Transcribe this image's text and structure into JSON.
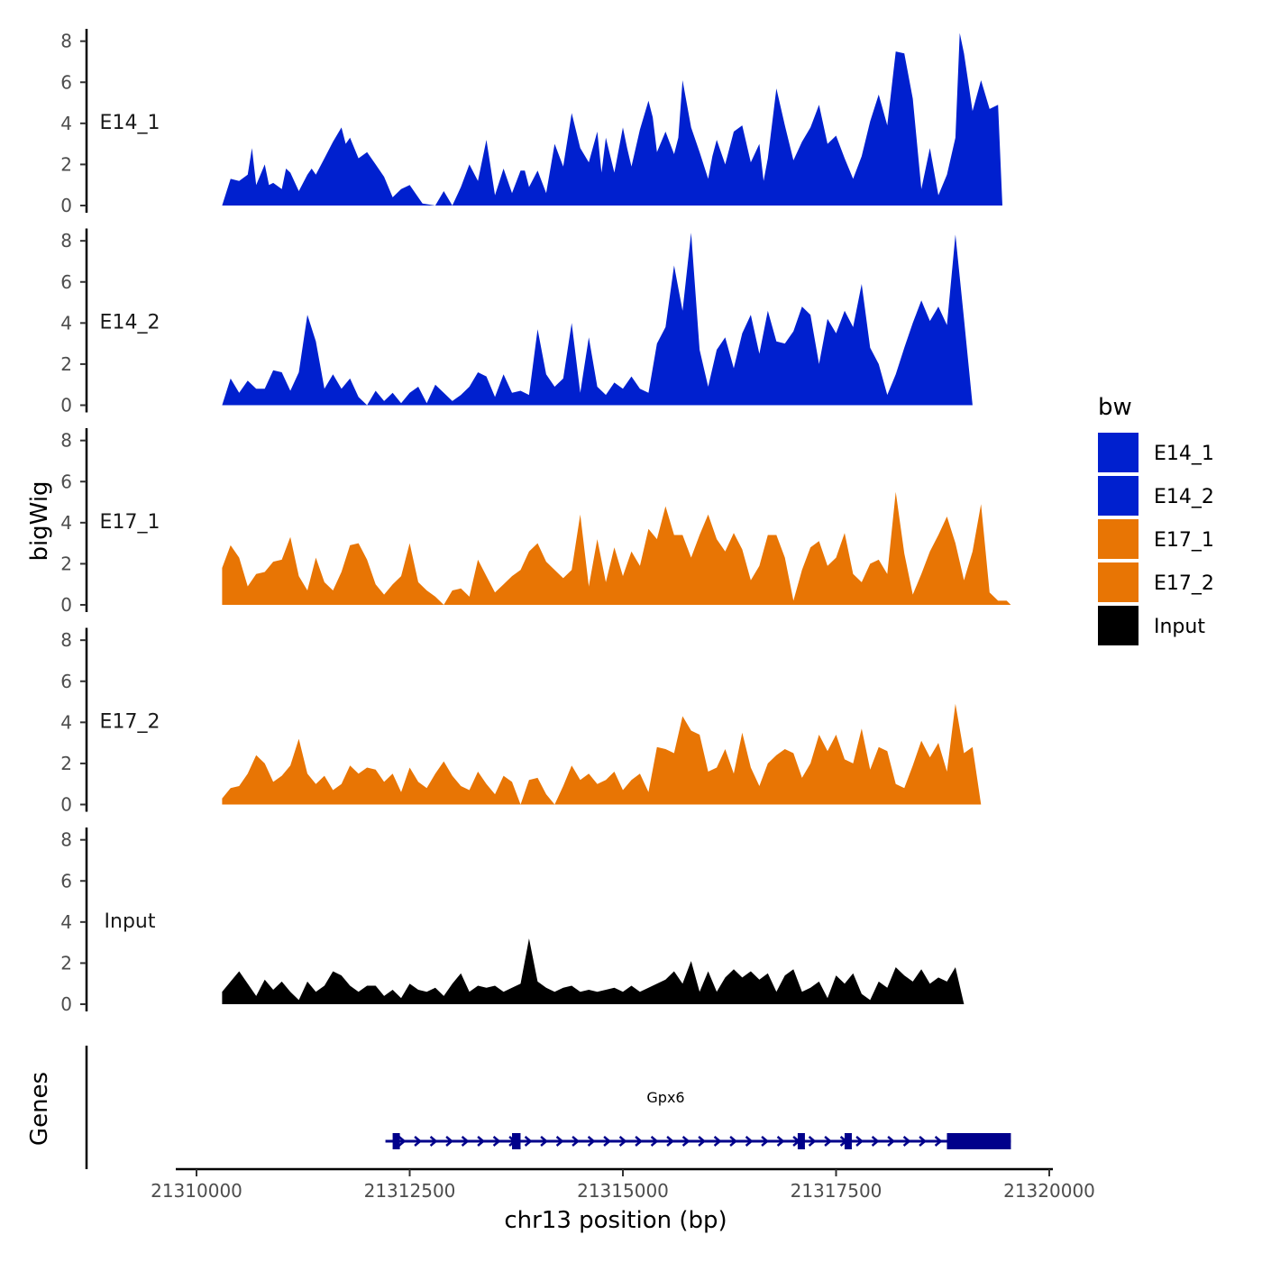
{
  "chart_data": {
    "type": "area",
    "ylabel": "bigWig",
    "genes_label": "Genes",
    "xlabel": "chr13 position (bp)",
    "xlim": [
      21309500,
      21320000
    ],
    "x_ticks": [
      21310000,
      21312500,
      21315000,
      21317500,
      21320000
    ],
    "x_tick_labels": [
      "21310000",
      "21312500",
      "21315000",
      "21317500",
      "21320000"
    ],
    "y_ticks": [
      0,
      2,
      4,
      6,
      8
    ],
    "y_tick_labels": [
      "0",
      "2",
      "4",
      "6",
      "8"
    ],
    "ylim": [
      0,
      8.6
    ],
    "legend": {
      "title": "bw",
      "entries": [
        {
          "name": "E14_1",
          "color": "#0020CF"
        },
        {
          "name": "E14_2",
          "color": "#0020CF"
        },
        {
          "name": "E17_1",
          "color": "#E87504"
        },
        {
          "name": "E17_2",
          "color": "#E87504"
        },
        {
          "name": "Input",
          "color": "#000000"
        }
      ]
    },
    "tracks": [
      {
        "name": "E14_1",
        "color": "#0020CF",
        "x": [
          21310300,
          21310400,
          21310500,
          21310600,
          21310650,
          21310700,
          21310800,
          21310850,
          21310900,
          21311000,
          21311050,
          21311100,
          21311200,
          21311300,
          21311350,
          21311400,
          21311500,
          21311600,
          21311700,
          21311750,
          21311800,
          21311900,
          21312000,
          21312100,
          21312200,
          21312300,
          21312400,
          21312500,
          21312650,
          21312800,
          21312900,
          21313000,
          21313100,
          21313200,
          21313300,
          21313400,
          21313500,
          21313600,
          21313700,
          21313800,
          21313850,
          21313900,
          21314000,
          21314100,
          21314200,
          21314300,
          21314400,
          21314500,
          21314600,
          21314700,
          21314750,
          21314800,
          21314900,
          21315000,
          21315050,
          21315100,
          21315200,
          21315300,
          21315350,
          21315400,
          21315500,
          21315600,
          21315650,
          21315700,
          21315800,
          21315900,
          21316000,
          21316050,
          21316100,
          21316200,
          21316300,
          21316400,
          21316500,
          21316600,
          21316650,
          21316700,
          21316800,
          21316900,
          21317000,
          21317100,
          21317200,
          21317300,
          21317400,
          21317500,
          21317600,
          21317700,
          21317800,
          21317900,
          21318000,
          21318100,
          21318200,
          21318300,
          21318400,
          21318500,
          21318600,
          21318700,
          21318800,
          21318900,
          21318950,
          21319000,
          21319100,
          21319200,
          21319300,
          21319400,
          21319450,
          21319500,
          21319550
        ],
        "y": [
          0,
          1.3,
          1.2,
          1.5,
          2.8,
          1.0,
          2.0,
          1.0,
          1.1,
          0.8,
          1.8,
          1.6,
          0.7,
          1.5,
          1.8,
          1.5,
          2.3,
          3.1,
          3.8,
          3.0,
          3.3,
          2.3,
          2.6,
          2.0,
          1.4,
          0.4,
          0.8,
          1.0,
          0.1,
          0,
          0.7,
          0,
          0.9,
          2.0,
          1.2,
          3.2,
          0.5,
          1.8,
          0.6,
          1.7,
          1.7,
          0.9,
          1.7,
          0.6,
          3.0,
          1.9,
          4.5,
          2.8,
          2.1,
          3.6,
          1.6,
          3.3,
          1.6,
          3.8,
          2.8,
          1.9,
          3.7,
          5.1,
          4.3,
          2.6,
          3.6,
          2.5,
          3.3,
          6.1,
          3.8,
          2.6,
          1.3,
          2.4,
          3.2,
          2.0,
          3.6,
          3.9,
          2.1,
          3.0,
          1.2,
          2.3,
          5.7,
          3.9,
          2.2,
          3.1,
          3.8,
          4.9,
          3.0,
          3.4,
          2.3,
          1.3,
          2.4,
          4.1,
          5.4,
          3.9,
          7.5,
          7.4,
          5.2,
          0.8,
          2.8,
          0.5,
          1.5,
          3.3,
          8.4,
          7.4,
          4.6,
          6.1,
          4.7,
          4.9,
          0,
          0,
          0
        ]
      },
      {
        "name": "E14_2",
        "color": "#0020CF",
        "x": [
          21310300,
          21310400,
          21310500,
          21310600,
          21310700,
          21310800,
          21310900,
          21311000,
          21311100,
          21311200,
          21311300,
          21311400,
          21311500,
          21311600,
          21311700,
          21311800,
          21311900,
          21312000,
          21312100,
          21312200,
          21312300,
          21312400,
          21312500,
          21312600,
          21312700,
          21312800,
          21312900,
          21313000,
          21313100,
          21313200,
          21313300,
          21313400,
          21313500,
          21313600,
          21313700,
          21313800,
          21313900,
          21314000,
          21314100,
          21314200,
          21314300,
          21314400,
          21314500,
          21314600,
          21314700,
          21314800,
          21314900,
          21315000,
          21315100,
          21315200,
          21315300,
          21315400,
          21315500,
          21315600,
          21315700,
          21315800,
          21315900,
          21316000,
          21316100,
          21316200,
          21316300,
          21316400,
          21316500,
          21316600,
          21316700,
          21316800,
          21316900,
          21317000,
          21317100,
          21317200,
          21317300,
          21317400,
          21317500,
          21317600,
          21317700,
          21317800,
          21317900,
          21318000,
          21318100,
          21318200,
          21318300,
          21318400,
          21318500,
          21318600,
          21318700,
          21318800,
          21318900,
          21319000,
          21319100,
          21319200,
          21319300,
          21319400,
          21319500,
          21319550
        ],
        "y": [
          0,
          1.3,
          0.6,
          1.2,
          0.8,
          0.8,
          1.7,
          1.6,
          0.7,
          1.6,
          4.4,
          3.1,
          0.8,
          1.5,
          0.8,
          1.3,
          0.4,
          0,
          0.7,
          0.2,
          0.6,
          0.1,
          0.6,
          0.9,
          0.1,
          1.0,
          0.6,
          0.2,
          0.5,
          0.9,
          1.6,
          1.4,
          0.4,
          1.5,
          0.6,
          0.7,
          0.5,
          3.7,
          1.5,
          0.9,
          1.3,
          4.0,
          0.6,
          3.3,
          0.9,
          0.5,
          1.1,
          0.8,
          1.4,
          0.8,
          0.6,
          3.0,
          3.8,
          6.8,
          4.6,
          8.4,
          2.7,
          0.9,
          2.7,
          3.3,
          1.8,
          3.5,
          4.4,
          2.5,
          4.6,
          3.1,
          3.0,
          3.6,
          4.8,
          4.4,
          2.0,
          4.2,
          3.5,
          4.6,
          3.8,
          5.9,
          2.8,
          2.0,
          0.5,
          1.5,
          2.8,
          4.0,
          5.1,
          4.1,
          4.8,
          3.9,
          8.3,
          4.2,
          0,
          0,
          0,
          0,
          0,
          0
        ]
      },
      {
        "name": "E17_1",
        "color": "#E87504",
        "x": [
          21310300,
          21310400,
          21310500,
          21310600,
          21310700,
          21310800,
          21310900,
          21311000,
          21311100,
          21311200,
          21311300,
          21311400,
          21311500,
          21311600,
          21311700,
          21311800,
          21311900,
          21312000,
          21312100,
          21312200,
          21312300,
          21312400,
          21312500,
          21312600,
          21312700,
          21312800,
          21312900,
          21313000,
          21313100,
          21313200,
          21313300,
          21313400,
          21313500,
          21313600,
          21313700,
          21313800,
          21313900,
          21314000,
          21314100,
          21314200,
          21314300,
          21314400,
          21314500,
          21314600,
          21314700,
          21314800,
          21314900,
          21315000,
          21315100,
          21315200,
          21315300,
          21315400,
          21315500,
          21315600,
          21315700,
          21315800,
          21315900,
          21316000,
          21316100,
          21316200,
          21316300,
          21316400,
          21316500,
          21316600,
          21316700,
          21316800,
          21316900,
          21317000,
          21317100,
          21317200,
          21317300,
          21317400,
          21317500,
          21317600,
          21317700,
          21317800,
          21317900,
          21318000,
          21318100,
          21318200,
          21318300,
          21318400,
          21318500,
          21318600,
          21318700,
          21318800,
          21318900,
          21319000,
          21319100,
          21319200,
          21319300,
          21319400,
          21319500,
          21319550
        ],
        "y": [
          1.8,
          2.9,
          2.3,
          0.9,
          1.5,
          1.6,
          2.1,
          2.2,
          3.3,
          1.4,
          0.7,
          2.3,
          1.1,
          0.7,
          1.6,
          2.9,
          3.0,
          2.2,
          1.0,
          0.5,
          1.0,
          1.4,
          3.0,
          1.1,
          0.7,
          0.4,
          0,
          0.7,
          0.8,
          0.4,
          2.2,
          1.4,
          0.6,
          1.0,
          1.4,
          1.7,
          2.6,
          3.0,
          2.1,
          1.7,
          1.3,
          1.7,
          4.4,
          0.9,
          3.2,
          1.1,
          2.8,
          1.4,
          2.6,
          1.9,
          3.7,
          3.2,
          4.8,
          3.4,
          3.4,
          2.3,
          3.4,
          4.4,
          3.2,
          2.6,
          3.5,
          2.7,
          1.2,
          1.9,
          3.4,
          3.4,
          2.3,
          0.2,
          1.7,
          2.8,
          3.1,
          1.9,
          2.3,
          3.5,
          1.5,
          1.1,
          2.0,
          2.2,
          1.5,
          5.5,
          2.5,
          0.5,
          1.5,
          2.6,
          3.4,
          4.3,
          3.0,
          1.2,
          2.6,
          4.9,
          0.6,
          0.2,
          0.2,
          0
        ]
      },
      {
        "name": "E17_2",
        "color": "#E87504",
        "x": [
          21310300,
          21310400,
          21310500,
          21310600,
          21310700,
          21310800,
          21310900,
          21311000,
          21311100,
          21311200,
          21311300,
          21311400,
          21311500,
          21311600,
          21311700,
          21311800,
          21311900,
          21312000,
          21312100,
          21312200,
          21312300,
          21312400,
          21312500,
          21312600,
          21312700,
          21312800,
          21312900,
          21313000,
          21313100,
          21313200,
          21313300,
          21313400,
          21313500,
          21313600,
          21313700,
          21313800,
          21313900,
          21314000,
          21314100,
          21314200,
          21314300,
          21314400,
          21314500,
          21314600,
          21314700,
          21314800,
          21314900,
          21315000,
          21315100,
          21315200,
          21315300,
          21315400,
          21315500,
          21315600,
          21315700,
          21315800,
          21315900,
          21316000,
          21316100,
          21316200,
          21316300,
          21316400,
          21316500,
          21316600,
          21316700,
          21316800,
          21316900,
          21317000,
          21317100,
          21317200,
          21317300,
          21317400,
          21317500,
          21317600,
          21317700,
          21317800,
          21317900,
          21318000,
          21318100,
          21318200,
          21318300,
          21318400,
          21318500,
          21318600,
          21318700,
          21318800,
          21318900,
          21319000,
          21319100,
          21319200,
          21319300,
          21319400,
          21319500,
          21319550
        ],
        "y": [
          0.3,
          0.8,
          0.9,
          1.5,
          2.4,
          2.0,
          1.1,
          1.4,
          1.9,
          3.2,
          1.5,
          1.0,
          1.4,
          0.7,
          1.0,
          1.9,
          1.5,
          1.8,
          1.7,
          1.1,
          1.5,
          0.6,
          1.8,
          1.1,
          0.8,
          1.5,
          2.1,
          1.4,
          0.9,
          0.7,
          1.6,
          1.0,
          0.5,
          1.4,
          1.1,
          0,
          1.2,
          1.3,
          0.5,
          0,
          0.9,
          1.9,
          1.2,
          1.5,
          1.0,
          1.2,
          1.6,
          0.7,
          1.2,
          1.5,
          0.6,
          2.8,
          2.7,
          2.5,
          4.3,
          3.6,
          3.4,
          1.6,
          1.8,
          2.7,
          1.5,
          3.5,
          1.8,
          0.9,
          2.0,
          2.4,
          2.7,
          2.5,
          1.3,
          2.0,
          3.4,
          2.6,
          3.4,
          2.2,
          2.0,
          3.7,
          1.7,
          2.8,
          2.6,
          1.0,
          0.8,
          1.9,
          3.1,
          2.3,
          3.0,
          1.6,
          4.9,
          2.5,
          2.8,
          0,
          0,
          0,
          0,
          0
        ]
      },
      {
        "name": "Input",
        "color": "#000000",
        "x": [
          21310300,
          21310400,
          21310500,
          21310600,
          21310700,
          21310800,
          21310900,
          21311000,
          21311100,
          21311200,
          21311300,
          21311400,
          21311500,
          21311600,
          21311700,
          21311800,
          21311900,
          21312000,
          21312100,
          21312200,
          21312300,
          21312400,
          21312500,
          21312600,
          21312700,
          21312800,
          21312900,
          21313000,
          21313100,
          21313200,
          21313300,
          21313400,
          21313500,
          21313600,
          21313700,
          21313800,
          21313900,
          21314000,
          21314100,
          21314200,
          21314300,
          21314400,
          21314500,
          21314600,
          21314700,
          21314800,
          21314900,
          21315000,
          21315100,
          21315200,
          21315300,
          21315400,
          21315500,
          21315600,
          21315700,
          21315800,
          21315900,
          21316000,
          21316100,
          21316200,
          21316300,
          21316400,
          21316500,
          21316600,
          21316700,
          21316800,
          21316900,
          21317000,
          21317100,
          21317200,
          21317300,
          21317400,
          21317500,
          21317600,
          21317700,
          21317800,
          21317900,
          21318000,
          21318100,
          21318200,
          21318300,
          21318400,
          21318500,
          21318600,
          21318700,
          21318800,
          21318900,
          21319000,
          21319100,
          21319200,
          21319300,
          21319400,
          21319500,
          21319550
        ],
        "y": [
          0.6,
          1.1,
          1.6,
          1.0,
          0.4,
          1.2,
          0.7,
          1.1,
          0.6,
          0.2,
          1.1,
          0.6,
          0.9,
          1.6,
          1.4,
          0.9,
          0.6,
          0.9,
          0.9,
          0.4,
          0.7,
          0.3,
          1.0,
          0.7,
          0.6,
          0.8,
          0.4,
          1.0,
          1.5,
          0.6,
          0.9,
          0.8,
          0.9,
          0.6,
          0.8,
          1.0,
          3.2,
          1.1,
          0.8,
          0.6,
          0.8,
          0.9,
          0.6,
          0.7,
          0.6,
          0.7,
          0.8,
          0.6,
          0.9,
          0.6,
          0.8,
          1.0,
          1.2,
          1.6,
          1.0,
          2.1,
          0.6,
          1.6,
          0.6,
          1.3,
          1.7,
          1.3,
          1.6,
          1.2,
          1.5,
          0.6,
          1.4,
          1.7,
          0.6,
          0.8,
          1.1,
          0.3,
          1.4,
          1.0,
          1.5,
          0.5,
          0.2,
          1.1,
          0.8,
          1.8,
          1.4,
          1.1,
          1.7,
          1.0,
          1.3,
          1.1,
          1.8,
          0,
          0,
          0,
          0,
          0,
          0,
          0
        ]
      }
    ],
    "gene": {
      "name": "Gpx6",
      "strand": "+",
      "start": 21312300,
      "end": 21319550,
      "color": "#00008B",
      "exons": [
        [
          21312300,
          21312380
        ],
        [
          21313700,
          21313800
        ],
        [
          21317050,
          21317110
        ],
        [
          21317600,
          21317660
        ],
        [
          21318800,
          21319550
        ]
      ]
    }
  }
}
